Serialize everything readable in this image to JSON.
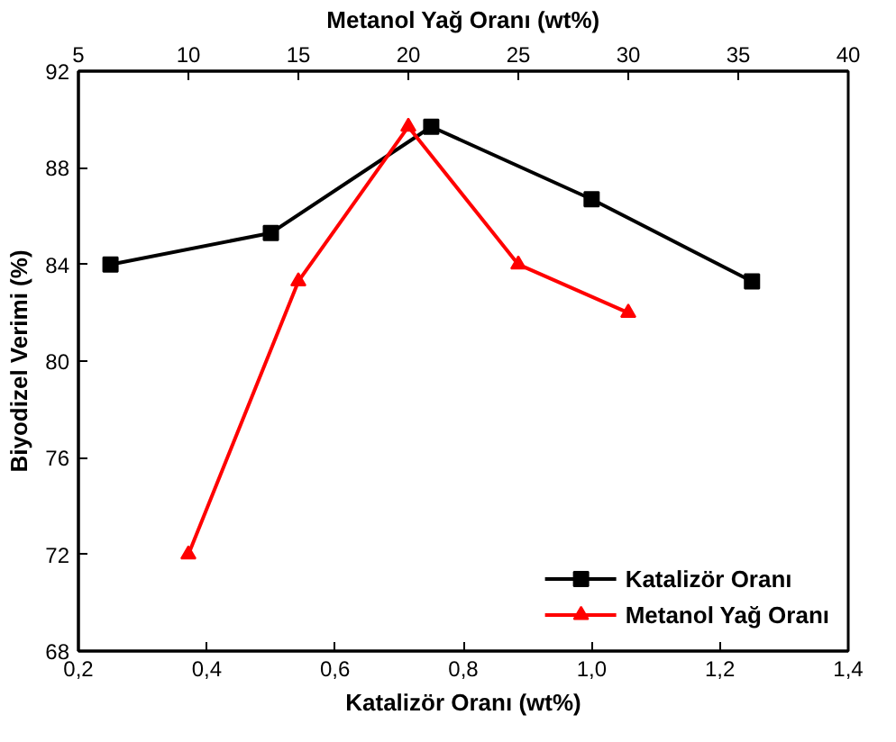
{
  "chart_data": {
    "type": "line",
    "xlabel": "Katalizör Oranı (wt%)",
    "x2label": "Metanol Yağ Oranı (wt%)",
    "ylabel": "Biyodizel Verimi (%)",
    "xlim": [
      0.2,
      1.4
    ],
    "xticks": [
      {
        "value": 0.2,
        "label": "0,2"
      },
      {
        "value": 0.4,
        "label": "0,4"
      },
      {
        "value": 0.6,
        "label": "0,6"
      },
      {
        "value": 0.8,
        "label": "0,8"
      },
      {
        "value": 1.0,
        "label": "1,0"
      },
      {
        "value": 1.2,
        "label": "1,2"
      },
      {
        "value": 1.4,
        "label": "1,4"
      }
    ],
    "x2lim": [
      5,
      40
    ],
    "x2ticks": [
      5,
      10,
      15,
      20,
      25,
      30,
      35,
      40
    ],
    "ylim": [
      68,
      92
    ],
    "yticks": [
      68,
      72,
      76,
      80,
      84,
      88,
      92
    ],
    "grid": false,
    "legend": "bottom right",
    "series": [
      {
        "name": "Katalizör Oranı",
        "color": "#000000",
        "marker": "square",
        "x": [
          0.25,
          0.5,
          0.75,
          1.0,
          1.25
        ],
        "values": [
          84.0,
          85.3,
          89.7,
          86.7,
          83.3
        ]
      },
      {
        "name": "Metanol Yağ Oranı",
        "color": "#ff0000",
        "marker": "triangle",
        "axis": "x2",
        "x": [
          10,
          15,
          20,
          25,
          30
        ],
        "values": [
          72.0,
          83.3,
          89.7,
          84.0,
          82.0
        ]
      }
    ]
  }
}
